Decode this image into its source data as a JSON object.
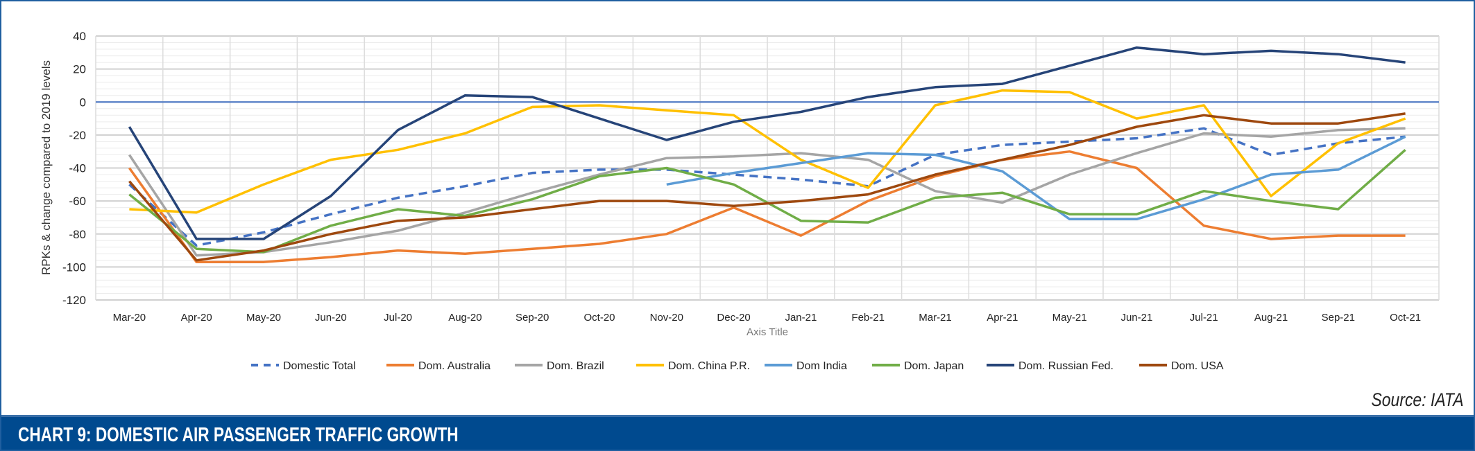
{
  "chart_data": {
    "type": "line",
    "title": "CHART 9: DOMESTIC AIR PASSENGER TRAFFIC GROWTH",
    "source": "Source: IATA",
    "xlabel": "Axis Title",
    "ylabel": "RPKs & change compared to 2019 levels",
    "ylim": [
      -120,
      40
    ],
    "yticks": [
      40,
      20,
      0,
      -20,
      -40,
      -60,
      -80,
      -100,
      -120
    ],
    "grid": true,
    "legend": "bottom",
    "categories": [
      "Mar-20",
      "Apr-20",
      "May-20",
      "Jun-20",
      "Jul-20",
      "Aug-20",
      "Sep-20",
      "Oct-20",
      "Nov-20",
      "Dec-20",
      "Jan-21",
      "Feb-21",
      "Mar-21",
      "Apr-21",
      "May-21",
      "Jun-21",
      "Jul-21",
      "Aug-21",
      "Sep-21",
      "Oct-21"
    ],
    "series": [
      {
        "name": "Domestic Total",
        "color": "#4472C4",
        "dashed": true,
        "values": [
          -50,
          -87,
          -79,
          -68,
          -58,
          -51,
          -43,
          -41,
          -41,
          -44,
          -47,
          -51,
          -32,
          -26,
          -24,
          -22,
          -16,
          -32,
          -25,
          -21
        ]
      },
      {
        "name": "Dom. Australia",
        "color": "#ED7D31",
        "values": [
          -40,
          -97,
          -97,
          -94,
          -90,
          -92,
          -89,
          -86,
          -80,
          -64,
          -81,
          -60,
          -45,
          -35,
          -30,
          -40,
          -75,
          -83,
          -81,
          -81
        ]
      },
      {
        "name": "Dom. Brazil",
        "color": "#A5A5A5",
        "values": [
          -32,
          -93,
          -91,
          -85,
          -78,
          -67,
          -55,
          -44,
          -34,
          -33,
          -31,
          -35,
          -54,
          -61,
          -44,
          -31,
          -19,
          -21,
          -17,
          -16
        ]
      },
      {
        "name": "Dom. China P.R.",
        "color": "#FFC000",
        "values": [
          -65,
          -67,
          -50,
          -35,
          -29,
          -19,
          -3,
          -2,
          -5,
          -8,
          -35,
          -52,
          -2,
          7,
          6,
          -10,
          -2,
          -57,
          -25,
          -10
        ]
      },
      {
        "name": "Dom India",
        "color": "#5B9BD5",
        "values": [
          null,
          null,
          null,
          null,
          null,
          null,
          null,
          null,
          -50,
          -43,
          -37,
          -31,
          -32,
          -42,
          -71,
          -71,
          -59,
          -44,
          -41,
          -21
        ]
      },
      {
        "name": "Dom. Japan",
        "color": "#70AD47",
        "values": [
          -56,
          -89,
          -91,
          -75,
          -65,
          -69,
          -59,
          -45,
          -40,
          -50,
          -72,
          -73,
          -58,
          -55,
          -68,
          -68,
          -54,
          -60,
          -65,
          -29
        ]
      },
      {
        "name": "Dom. Russian Fed.",
        "color": "#264478",
        "values": [
          -15,
          -83,
          -83,
          -57,
          -17,
          4,
          3,
          -10,
          -23,
          -12,
          -6,
          3,
          9,
          11,
          22,
          33,
          29,
          31,
          29,
          24
        ]
      },
      {
        "name": "Dom. USA",
        "color": "#9E480E",
        "values": [
          -48,
          -96,
          -90,
          -80,
          -72,
          -70,
          -65,
          -60,
          -60,
          -63,
          -60,
          -56,
          -44,
          -35,
          -26,
          -15,
          -8,
          -13,
          -13,
          -7
        ]
      }
    ]
  },
  "colors": {
    "header_bar": "#004a8f",
    "zero_line": "#4472C4"
  }
}
